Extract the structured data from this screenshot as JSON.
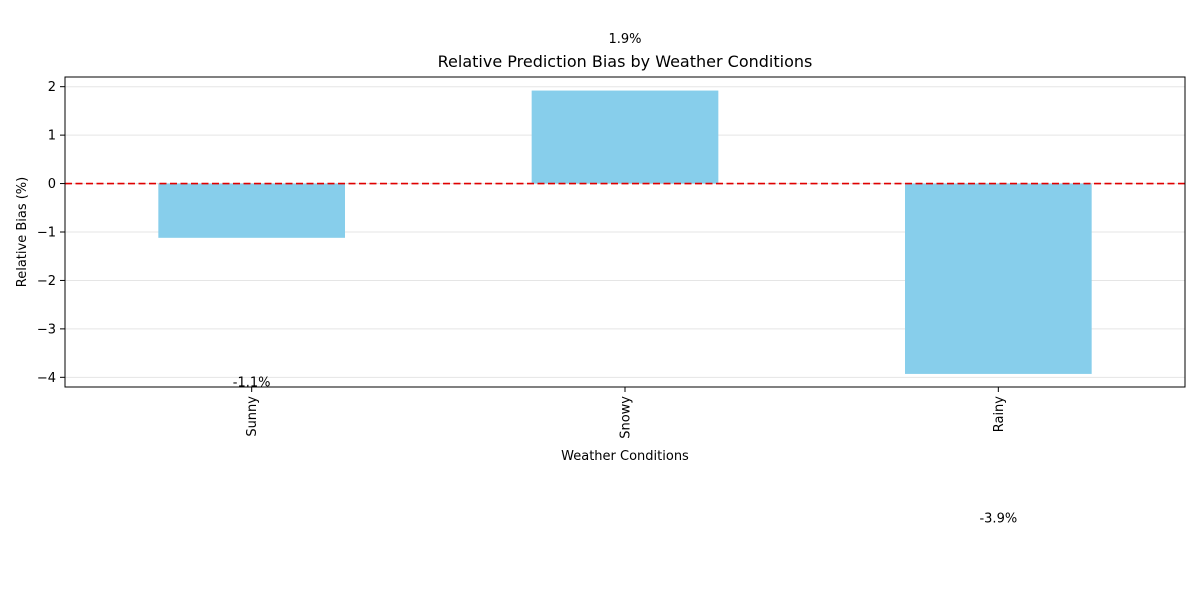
{
  "chart_data": {
    "type": "bar",
    "title": "Relative Prediction Bias by Weather Conditions",
    "xlabel": "Weather Conditions",
    "ylabel": "Relative Bias (%)",
    "categories": [
      "Sunny",
      "Snowy",
      "Rainy"
    ],
    "values": [
      -1.12,
      1.92,
      -3.93
    ],
    "data_labels": [
      "-1.1%",
      "1.9%",
      "-3.9%"
    ],
    "data_label_values": [
      -4.1,
      3.0,
      -6.9
    ],
    "ylim": [
      -4.2,
      2.2
    ],
    "yticks": [
      2,
      1,
      0,
      -1,
      -2,
      -3,
      -4
    ],
    "ytick_labels": [
      "2",
      "1",
      "0",
      "−1",
      "−2",
      "−3",
      "−4"
    ],
    "reference_line": {
      "y": 0,
      "style": "dashed",
      "color": "#e00000"
    },
    "grid": "y",
    "bar_color": "#87ceeb"
  }
}
